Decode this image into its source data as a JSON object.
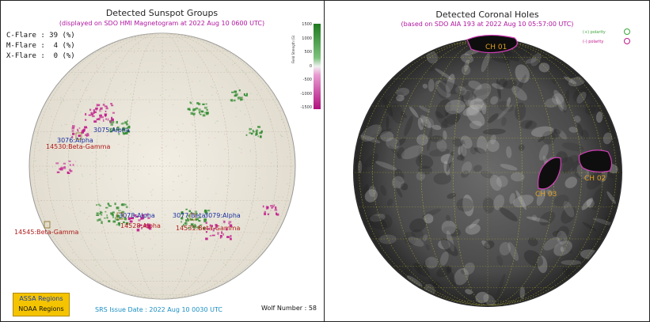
{
  "left_panel": {
    "title": "Detected Sunspot Groups",
    "subtitle": "(displayed on SDO HMI Magnetogram at 2022 Aug 10 0600 UTC)",
    "flares": [
      {
        "label": "C-Flare : 39 (%)"
      },
      {
        "label": "M-Flare :  4 (%)"
      },
      {
        "label": "X-Flare :  0 (%)"
      }
    ],
    "colorbar": {
      "title": "Field Strength (G)",
      "ticks": [
        "1500",
        "1000",
        "500",
        "0",
        "-500",
        "-1000",
        "-1500"
      ],
      "positive_color": "#2e8b2e",
      "negative_color": "#c0168a"
    },
    "regions": [
      {
        "label": "3075:Alpha",
        "color": "#1a2fa0"
      },
      {
        "label": "3076:Alpha",
        "color": "#1a2fa0"
      },
      {
        "label": "14530:Beta-Gamma",
        "color": "#b01a1a"
      },
      {
        "label": "3078:Alpha",
        "color": "#1a2fa0"
      },
      {
        "label": "14528:Alpha",
        "color": "#b01a1a"
      },
      {
        "label": "3077:Beta",
        "color": "#1a2fa0"
      },
      {
        "label": "3079:Alpha",
        "color": "#1a2fa0"
      },
      {
        "label": "14531:Beta-Gamma",
        "color": "#b01a1a"
      },
      {
        "label": "14545:Beta-Gamma",
        "color": "#b01a1a"
      }
    ],
    "legend": {
      "assa": "ASSA Regions",
      "noaa": "NOAA Regions"
    },
    "srs_issue": "SRS Issue Date : 2022 Aug 10 0030 UTC",
    "wolf_number": "Wolf Number : 58"
  },
  "right_panel": {
    "title": "Detected Coronal Holes",
    "subtitle": "(based on SDO AIA 193 at 2022 Aug 10 05:57:00 UTC)",
    "polarity_legend": [
      {
        "label": "(+) polarity",
        "color": "#3aa63a"
      },
      {
        "label": "(-) polarity",
        "color": "#c0168a"
      }
    ],
    "holes": [
      {
        "label": "CH 01"
      },
      {
        "label": "CH 02"
      },
      {
        "label": "CH 03"
      }
    ],
    "label_color": "#e0a020"
  }
}
